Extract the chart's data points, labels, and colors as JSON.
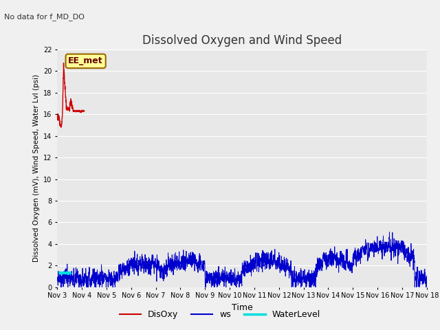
{
  "title": "Dissolved Oxygen and Wind Speed",
  "no_data_text": "No data for f_MD_DO",
  "annotation_text": "EE_met",
  "xlabel": "Time",
  "ylabel": "Dissolved Oxygen (mV), Wind Speed, Water Lvl (psi)",
  "ylim": [
    0,
    22
  ],
  "fig_bg_color": "#f0f0f0",
  "plot_bg_color": "#e8e8e8",
  "disoxy_color": "#cc0000",
  "ws_color": "#0000cc",
  "wl_color": "#00dddd",
  "legend_labels": [
    "DisOxy",
    "ws",
    "WaterLevel"
  ],
  "annotation_box_facecolor": "#ffff99",
  "annotation_box_edgecolor": "#996600",
  "yticks": [
    0,
    2,
    4,
    6,
    8,
    10,
    12,
    14,
    16,
    18,
    20,
    22
  ],
  "x_days": [
    0,
    1,
    2,
    3,
    4,
    5,
    6,
    7,
    8,
    9,
    10,
    11,
    12,
    13,
    14,
    15
  ],
  "x_labels": [
    "Nov 3",
    "Nov 4",
    "Nov 5",
    "Nov 6",
    "Nov 7",
    "Nov 8",
    "Nov 9",
    "Nov 10",
    "Nov 11",
    "Nov 12",
    "Nov 13",
    "Nov 14",
    "Nov 15",
    "Nov 16",
    "Nov 17",
    "Nov 18"
  ]
}
